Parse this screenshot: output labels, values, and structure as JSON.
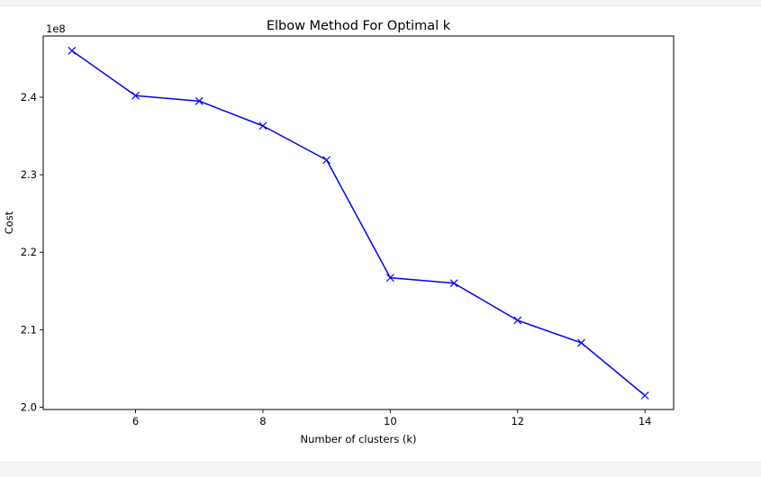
{
  "chart_data": {
    "type": "line",
    "title": "Elbow Method For Optimal k",
    "xlabel": "Number of clusters (k)",
    "ylabel": "Cost",
    "y_offset_label": "1e8",
    "x": [
      5,
      6,
      7,
      8,
      9,
      10,
      11,
      12,
      13,
      14
    ],
    "y": [
      246000000,
      240200000,
      239500000,
      236300000,
      231900000,
      216700000,
      216000000,
      211200000,
      208300000,
      201500000
    ],
    "xlim": [
      4.55,
      14.45
    ],
    "ylim": [
      199700000,
      247900000
    ],
    "xticks": [
      6,
      8,
      10,
      12,
      14
    ],
    "xtick_labels": [
      "6",
      "8",
      "10",
      "12",
      "14"
    ],
    "yticks": [
      200000000,
      210000000,
      220000000,
      230000000,
      240000000
    ],
    "ytick_labels": [
      "2.0",
      "2.1",
      "2.2",
      "2.3",
      "2.4"
    ],
    "marker": "x",
    "line_color": "#0000ff",
    "grid": false,
    "legend": "none"
  }
}
